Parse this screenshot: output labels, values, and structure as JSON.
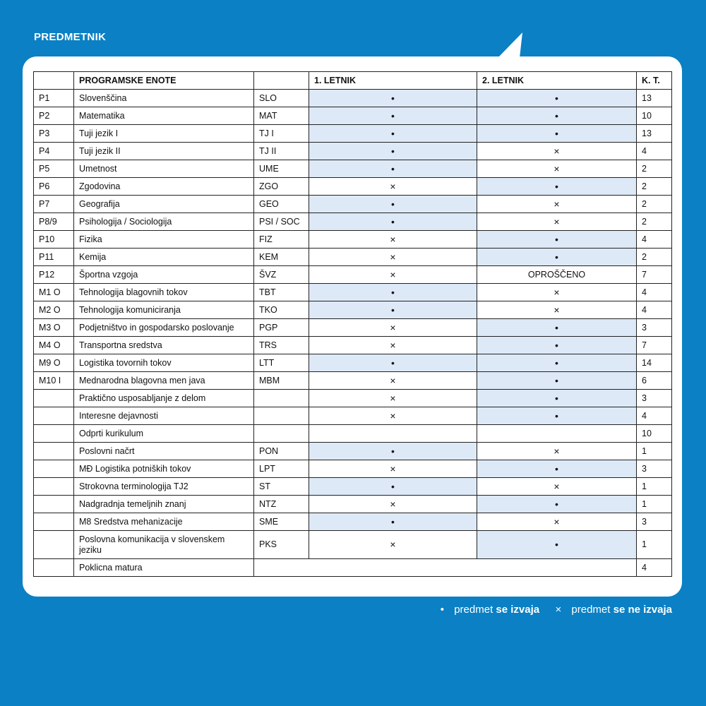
{
  "title": "PREDMETNIK",
  "colors": {
    "background": "#0b80c4",
    "highlight": "#dde9f7"
  },
  "table": {
    "headers": [
      "",
      "PROGRAMSKE ENOTE",
      "",
      "1. LETNIK",
      "2. LETNIK",
      "K. T."
    ],
    "rows": [
      {
        "id": "P1",
        "name": "Slovenščina",
        "code": "SLO",
        "y1": "•",
        "y2": "•",
        "kt": "13"
      },
      {
        "id": "P2",
        "name": "Matematika",
        "code": "MAT",
        "y1": "•",
        "y2": "•",
        "kt": "10"
      },
      {
        "id": "P3",
        "name": "Tuji jezik I",
        "code": "TJ I",
        "y1": "•",
        "y2": "•",
        "kt": "13"
      },
      {
        "id": "P4",
        "name": "Tuji jezik II",
        "code": "TJ II",
        "y1": "•",
        "y2": "×",
        "kt": "4"
      },
      {
        "id": "P5",
        "name": "Umetnost",
        "code": "UME",
        "y1": "•",
        "y2": "×",
        "kt": "2"
      },
      {
        "id": "P6",
        "name": "Zgodovina",
        "code": "ZGO",
        "y1": "×",
        "y2": "•",
        "kt": "2"
      },
      {
        "id": "P7",
        "name": "Geografija",
        "code": "GEO",
        "y1": "•",
        "y2": "×",
        "kt": "2"
      },
      {
        "id": "P8/9",
        "name": "Psihologija / Sociologija",
        "code": "PSI / SOC",
        "y1": "•",
        "y2": "×",
        "kt": "2"
      },
      {
        "id": "P10",
        "name": "Fizika",
        "code": "FIZ",
        "y1": "×",
        "y2": "•",
        "kt": "4"
      },
      {
        "id": "P11",
        "name": "Kemija",
        "code": "KEM",
        "y1": "×",
        "y2": "•",
        "kt": "2"
      },
      {
        "id": "P12",
        "name": "Športna vzgoja",
        "code": "ŠVZ",
        "y1": "×",
        "y2": "OPROŠČENO",
        "kt": "7"
      },
      {
        "id": "M1 O",
        "name": "Tehnologija blagovnih tokov",
        "code": "TBT",
        "y1": "•",
        "y2": "×",
        "kt": "4"
      },
      {
        "id": "M2 O",
        "name": "Tehnologija komuniciranja",
        "code": "TKO",
        "y1": "•",
        "y2": "×",
        "kt": "4"
      },
      {
        "id": "M3 O",
        "name": "Podjetništvo in gospodarsko poslovanje",
        "code": "PGP",
        "y1": "×",
        "y2": "•",
        "kt": "3"
      },
      {
        "id": "M4 O",
        "name": "Transportna sredstva",
        "code": "TRS",
        "y1": "×",
        "y2": "•",
        "kt": "7"
      },
      {
        "id": "M9 O",
        "name": "Logistika tovornih tokov",
        "code": "LTT",
        "y1": "•",
        "y2": "•",
        "kt": "14"
      },
      {
        "id": "M10 I",
        "name": "Mednarodna blagovna men java",
        "code": "MBM",
        "y1": "×",
        "y2": "•",
        "kt": "6"
      },
      {
        "id": "",
        "name": "Praktično usposabljanje z delom",
        "code": "",
        "y1": "×",
        "y2": "•",
        "kt": "3"
      },
      {
        "id": "",
        "name": "Interesne dejavnosti",
        "code": "",
        "y1": "×",
        "y2": "•",
        "kt": "4"
      },
      {
        "id": "",
        "name": "Odprti kurikulum",
        "code": "",
        "y1": "",
        "y2": "",
        "kt": "10"
      },
      {
        "id": "",
        "name": "Poslovni načrt",
        "code": "PON",
        "y1": "•",
        "y2": "×",
        "kt": "1"
      },
      {
        "id": "",
        "name": "MĐ Logistika potniških tokov",
        "code": "LPT",
        "y1": "×",
        "y2": "•",
        "kt": "3"
      },
      {
        "id": "",
        "name": "Strokovna terminologija TJ2",
        "code": "ST",
        "y1": "•",
        "y2": "×",
        "kt": "1"
      },
      {
        "id": "",
        "name": "Nadgradnja temeljnih znanj",
        "code": "NTZ",
        "y1": "×",
        "y2": "•",
        "kt": "1"
      },
      {
        "id": "",
        "name": "M8 Sredstva mehanizacije",
        "code": "SME",
        "y1": "•",
        "y2": "×",
        "kt": "3"
      },
      {
        "id": "",
        "name": "Poslovna komunikacija v slovenskem jeziku",
        "code": "PKS",
        "y1": "×",
        "y2": "•",
        "kt": "1"
      }
    ],
    "final_row": {
      "id": "",
      "name": "Poklicna matura",
      "kt": "4"
    }
  },
  "legend": {
    "dot_symbol": "•",
    "dot_text": "predmet",
    "dot_bold": "se izvaja",
    "x_symbol": "×",
    "x_text": "predmet",
    "x_bold": "se ne izvaja"
  }
}
